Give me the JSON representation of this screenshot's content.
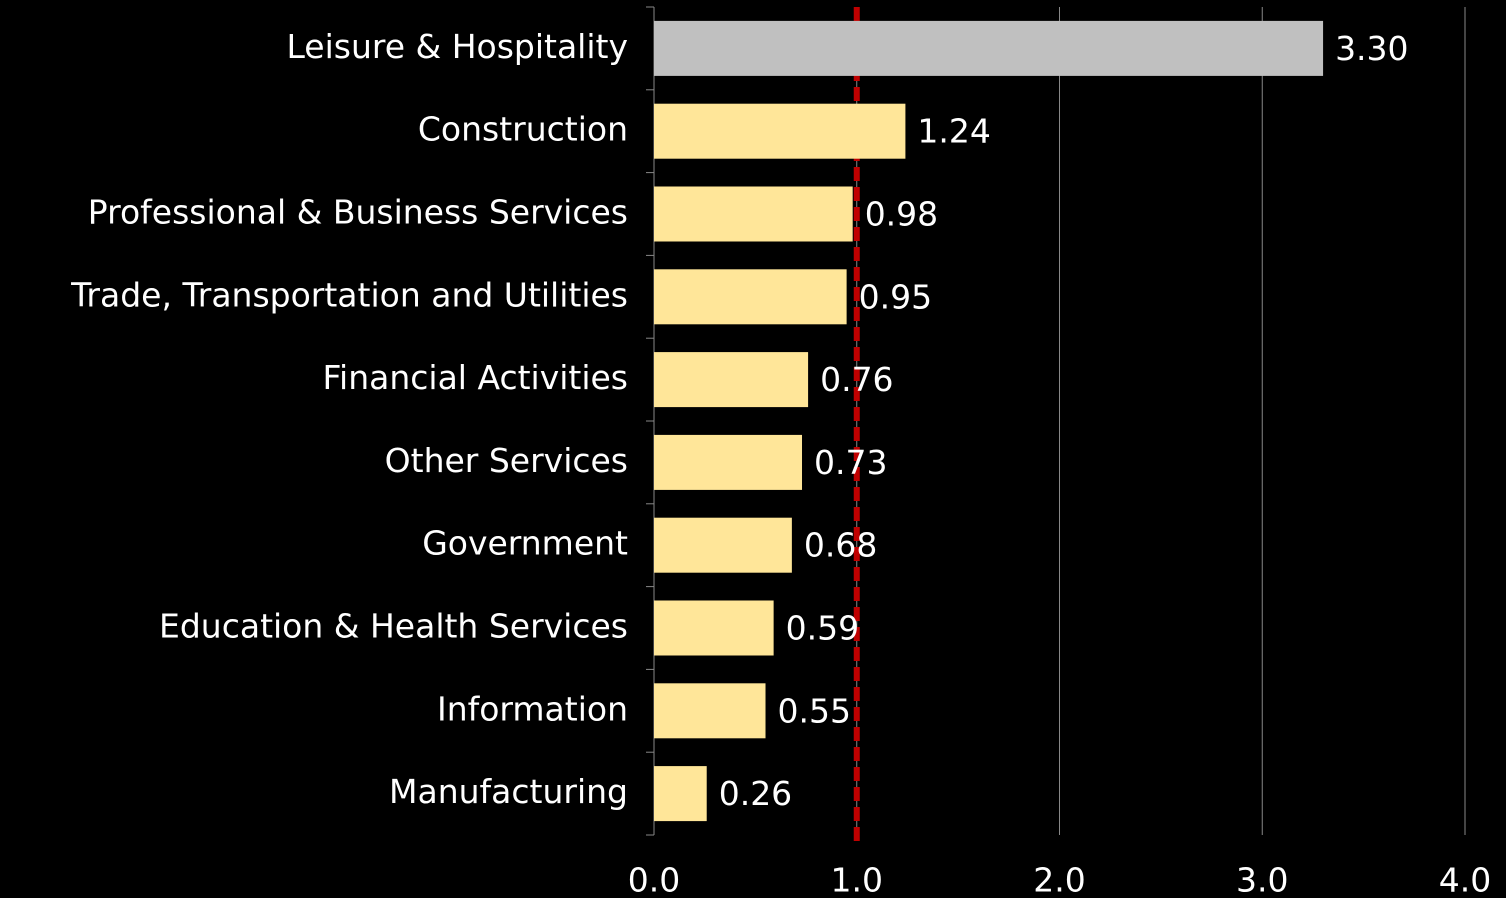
{
  "chart_data": {
    "type": "barh",
    "categories": [
      "Leisure & Hospitality",
      "Construction",
      "Professional & Business Services",
      "Trade, Transportation and Utilities",
      "Financial Activities",
      "Other Services",
      "Government",
      "Education & Health Services",
      "Information",
      "Manufacturing"
    ],
    "values": [
      3.3,
      1.24,
      0.98,
      0.95,
      0.76,
      0.73,
      0.68,
      0.59,
      0.55,
      0.26
    ],
    "value_labels": [
      "3.30",
      "1.24",
      "0.98",
      "0.95",
      "0.76",
      "0.73",
      "0.68",
      "0.59",
      "0.55",
      "0.26"
    ],
    "colors": [
      "#c0c0c0",
      "#ffe699",
      "#ffe699",
      "#ffe699",
      "#ffe699",
      "#ffe699",
      "#ffe699",
      "#ffe699",
      "#ffe699",
      "#ffe699"
    ],
    "xlim": [
      0,
      4
    ],
    "xticks": [
      {
        "value": 0,
        "label": "0.0"
      },
      {
        "value": 1,
        "label": "1.0"
      },
      {
        "value": 2,
        "label": "2.0"
      },
      {
        "value": 3,
        "label": "3.0"
      },
      {
        "value": 4,
        "label": "4.0"
      }
    ],
    "grid": true,
    "reference_line": {
      "value": 1,
      "color": "#c00000"
    }
  }
}
